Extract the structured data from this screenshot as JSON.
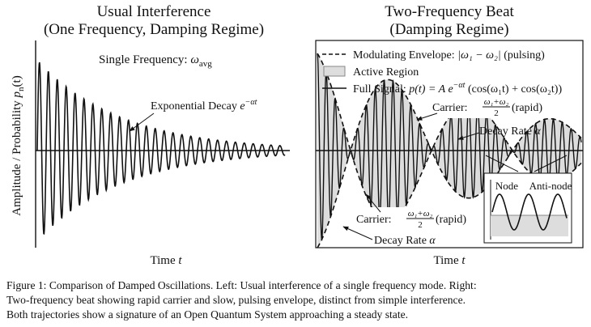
{
  "left": {
    "title": [
      "Usual Interference",
      "(One Frequency, Damping Regime)"
    ],
    "frequency_note": [
      "Single Frequency: ",
      "ω",
      "avg"
    ],
    "decay_note": [
      "Exponential Decay ",
      "e",
      "−αt"
    ],
    "y_label": [
      "Amplitude / Probability ",
      "p",
      "n",
      "(t)"
    ],
    "x_label": [
      "Time ",
      "t"
    ]
  },
  "right": {
    "title": [
      "Two-Frequency Beat",
      "(Damping Regime)"
    ],
    "legend": [
      [
        "Modulating Envelope: ",
        "|ω₁ − ω₂|",
        " (pulsing)"
      ],
      [
        "Active Region"
      ],
      [
        "Full Signal: ",
        "p(t) = A e",
        "−αt",
        " (cos(ω₁t) + cos(ω₂t))"
      ]
    ],
    "carrier_note_1": [
      "Carrier: ",
      "ω₁+ω₂",
      "2",
      " (rapid)"
    ],
    "carrier_note_2": [
      "Carrier: ",
      "ω₁+ω₂",
      "2",
      " (rapid)"
    ],
    "decay_note_1": [
      "Decay Rate ",
      "α"
    ],
    "decay_note_2": [
      "Decay Rate ",
      "α"
    ],
    "inset": [
      "Node",
      "Anti-node"
    ],
    "x_label": [
      "Time ",
      "t"
    ]
  },
  "caption": [
    "Figure 1: Comparison of Damped Oscillations. Left: Usual interference of a single frequency mode. Right:",
    "Two-frequency beat showing rapid carrier and slow, pulsing envelope, distinct from simple interference.",
    "Both trajectories show a signature of an Open Quantum System approaching a steady state."
  ]
}
